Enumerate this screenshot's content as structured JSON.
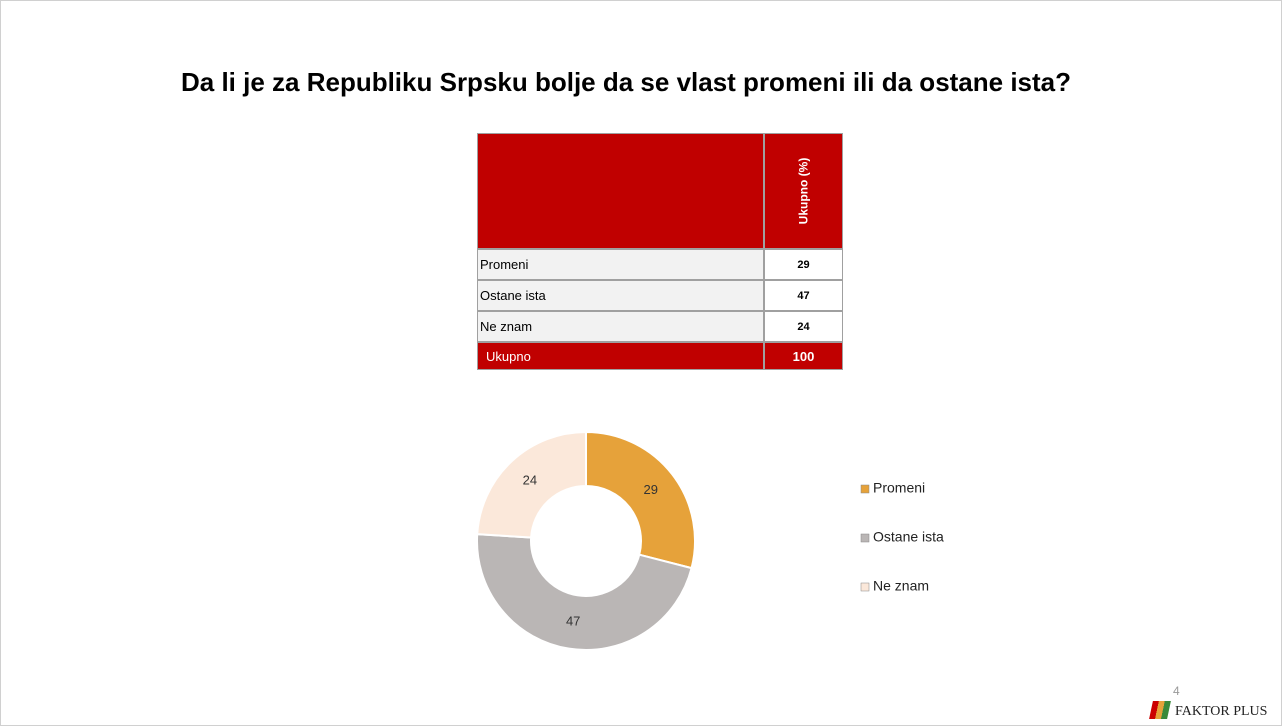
{
  "title": "Da li je za Republiku Srpsku bolje da se vlast promeni ili da ostane ista?",
  "table": {
    "header": "Ukupno (%)",
    "rows": [
      [
        "Promeni",
        "29"
      ],
      [
        "Ostane ista",
        "47"
      ],
      [
        "Ne znam",
        "24"
      ]
    ],
    "total": [
      "Ukupno",
      "100"
    ]
  },
  "chart_data": {
    "type": "donut",
    "categories": [
      "Promeni",
      "Ostane ista",
      "Ne znam"
    ],
    "values": [
      29,
      47,
      24
    ],
    "colors": [
      "#e6a23a",
      "#bab6b5",
      "#fbe8da"
    ],
    "legend": "right"
  },
  "page_number": "4",
  "logo": "FAKTOR PLUS"
}
